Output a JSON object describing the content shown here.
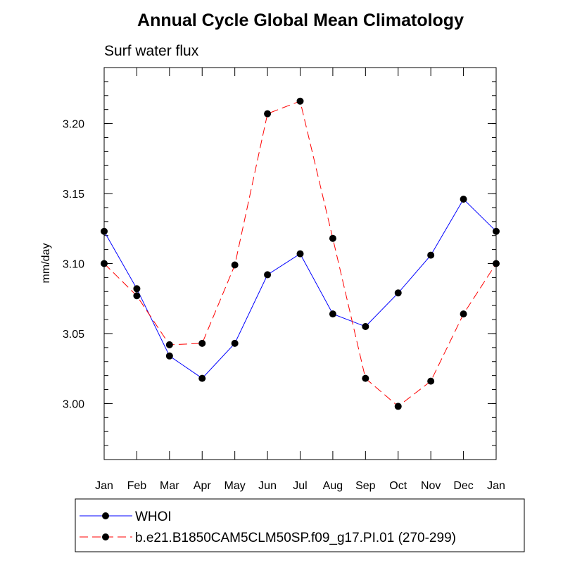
{
  "chart_data": {
    "type": "line",
    "title": "Annual Cycle Global Mean Climatology",
    "subtitle": "Surf water flux",
    "xlabel": "",
    "ylabel": "mm/day",
    "categories": [
      "Jan",
      "Feb",
      "Mar",
      "Apr",
      "May",
      "Jun",
      "Jul",
      "Aug",
      "Sep",
      "Oct",
      "Nov",
      "Dec",
      "Jan"
    ],
    "ylim": [
      2.96,
      3.24
    ],
    "yticks": [
      3.0,
      3.05,
      3.1,
      3.15,
      3.2
    ],
    "ytick_labels": [
      "3.00",
      "3.05",
      "3.10",
      "3.15",
      "3.20"
    ],
    "yminor_step": 0.01,
    "series": [
      {
        "name": "WHOI",
        "color": "#0000ff",
        "style": "solid",
        "values": [
          3.123,
          3.082,
          3.034,
          3.018,
          3.043,
          3.092,
          3.107,
          3.064,
          3.055,
          3.079,
          3.106,
          3.146,
          3.123
        ]
      },
      {
        "name": "b.e21.B1850CAM5CLM50SP.f09_g17.PI.01 (270-299)",
        "color": "#ff0000",
        "style": "dashed",
        "values": [
          3.1,
          3.077,
          3.042,
          3.043,
          3.099,
          3.207,
          3.216,
          3.118,
          3.018,
          2.998,
          3.016,
          3.064,
          3.1
        ]
      }
    ],
    "legend_position": "bottom"
  }
}
